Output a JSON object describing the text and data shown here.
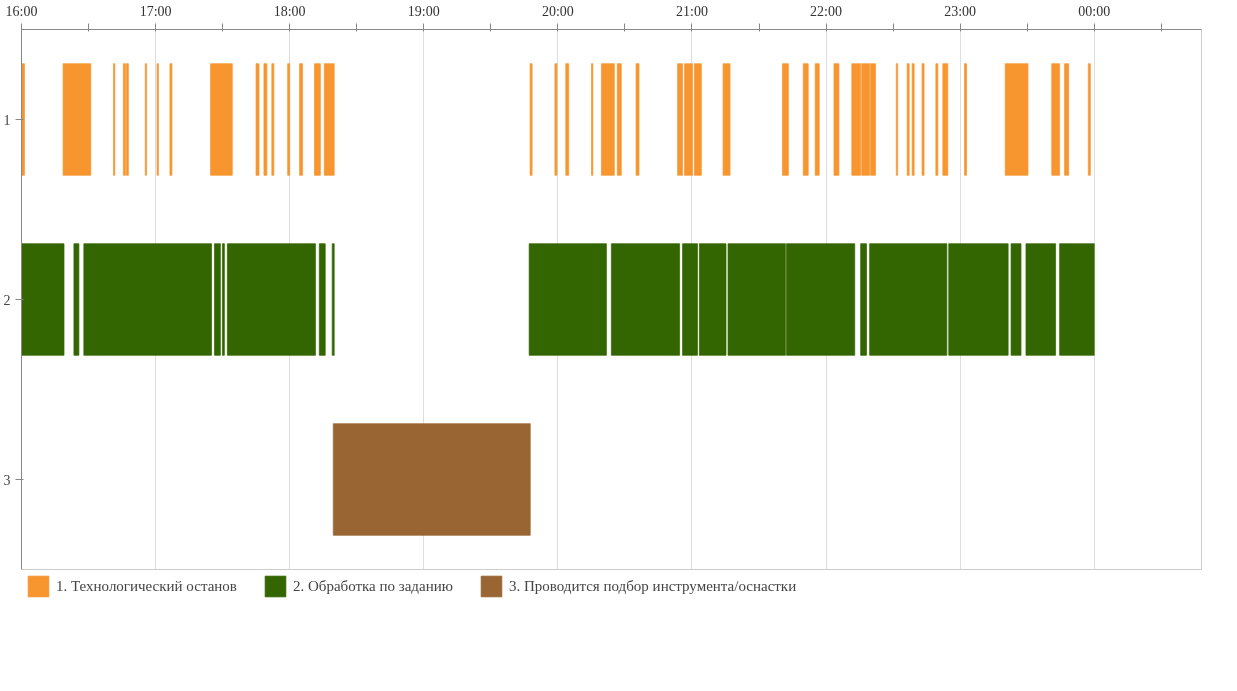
{
  "chart_data": {
    "type": "bar",
    "orientation": "horizontal",
    "categories": [
      "1",
      "2",
      "3"
    ],
    "xlim": [
      16,
      24.8
    ],
    "xticks": [
      {
        "value": 16,
        "label": "16:00"
      },
      {
        "value": 16.5,
        "label": null
      },
      {
        "value": 17,
        "label": "17:00"
      },
      {
        "value": 17.5,
        "label": null
      },
      {
        "value": 18,
        "label": "18:00"
      },
      {
        "value": 18.5,
        "label": null
      },
      {
        "value": 19,
        "label": "19:00"
      },
      {
        "value": 19.5,
        "label": null
      },
      {
        "value": 20,
        "label": "20:00"
      },
      {
        "value": 20.5,
        "label": null
      },
      {
        "value": 21,
        "label": "21:00"
      },
      {
        "value": 21.5,
        "label": null
      },
      {
        "value": 22,
        "label": "22:00"
      },
      {
        "value": 22.5,
        "label": null
      },
      {
        "value": 23,
        "label": "23:00"
      },
      {
        "value": 23.5,
        "label": null
      },
      {
        "value": 24,
        "label": "00:00"
      },
      {
        "value": 24.5,
        "label": null
      }
    ],
    "grid": "x",
    "legend": "bottom",
    "series": [
      {
        "name": "1. Технологический останов",
        "color": "#f7962f",
        "base": [
          16.0,
          null,
          null
        ],
        "values": [
          0.022,
          null,
          null
        ]
      },
      {
        "color": "#f7962f",
        "base": [
          16.31,
          null,
          null
        ],
        "values": [
          0.207,
          null,
          null
        ]
      },
      {
        "color": "#f7962f",
        "base": [
          16.686,
          null,
          null
        ],
        "values": [
          0.01,
          null,
          null
        ]
      },
      {
        "color": "#f7962f",
        "base": [
          16.76,
          null,
          null
        ],
        "values": [
          0.015,
          null,
          null
        ]
      },
      {
        "color": "#f7962f",
        "base": [
          16.782,
          null,
          null
        ],
        "values": [
          0.015,
          null,
          null
        ]
      },
      {
        "color": "#f7962f",
        "base": [
          16.923,
          null,
          null
        ],
        "values": [
          0.01,
          null,
          null
        ]
      },
      {
        "color": "#f7962f",
        "base": [
          17.011,
          null,
          null
        ],
        "values": [
          0.01,
          null,
          null
        ]
      },
      {
        "color": "#f7962f",
        "base": [
          17.107,
          null,
          null
        ],
        "values": [
          0.015,
          null,
          null
        ]
      },
      {
        "color": "#f7962f",
        "base": [
          17.41,
          null,
          null
        ],
        "values": [
          0.162,
          null,
          null
        ]
      },
      {
        "color": "#f7962f",
        "base": [
          17.749,
          null,
          null
        ],
        "values": [
          0.022,
          null,
          null
        ]
      },
      {
        "color": "#f7962f",
        "base": [
          17.808,
          null,
          null
        ],
        "values": [
          0.022,
          null,
          null
        ]
      },
      {
        "color": "#f7962f",
        "base": [
          17.867,
          null,
          null
        ],
        "values": [
          0.015,
          null,
          null
        ]
      },
      {
        "color": "#f7962f",
        "base": [
          17.985,
          null,
          null
        ],
        "values": [
          0.015,
          null,
          null
        ]
      },
      {
        "color": "#f7962f",
        "base": [
          18.074,
          null,
          null
        ],
        "values": [
          0.022,
          null,
          null
        ]
      },
      {
        "color": "#f7962f",
        "base": [
          18.185,
          null,
          null
        ],
        "values": [
          0.044,
          null,
          null
        ]
      },
      {
        "color": "#f7962f",
        "base": [
          18.258,
          null,
          null
        ],
        "values": [
          0.074,
          null,
          null
        ]
      },
      {
        "color": "#f7962f",
        "base": [
          19.793,
          null,
          null
        ],
        "values": [
          0.015,
          null,
          null
        ]
      },
      {
        "color": "#f7962f",
        "base": [
          19.978,
          null,
          null
        ],
        "values": [
          0.015,
          null,
          null
        ]
      },
      {
        "color": "#f7962f",
        "base": [
          20.059,
          null,
          null
        ],
        "values": [
          0.022,
          null,
          null
        ]
      },
      {
        "color": "#f7962f",
        "base": [
          20.251,
          null,
          null
        ],
        "values": [
          0.01,
          null,
          null
        ]
      },
      {
        "color": "#f7962f",
        "base": [
          20.325,
          null,
          null
        ],
        "values": [
          0.096,
          null,
          null
        ]
      },
      {
        "color": "#f7962f",
        "base": [
          20.443,
          null,
          null
        ],
        "values": [
          0.03,
          null,
          null
        ]
      },
      {
        "color": "#f7962f",
        "base": [
          20.583,
          null,
          null
        ],
        "values": [
          0.022,
          null,
          null
        ]
      },
      {
        "color": "#f7962f",
        "base": [
          20.893,
          null,
          null
        ],
        "values": [
          0.037,
          null,
          null
        ]
      },
      {
        "color": "#f7962f",
        "base": [
          20.945,
          null,
          null
        ],
        "values": [
          0.059,
          null,
          null
        ]
      },
      {
        "color": "#f7962f",
        "base": [
          21.018,
          null,
          null
        ],
        "values": [
          0.052,
          null,
          null
        ]
      },
      {
        "color": "#f7962f",
        "base": [
          21.232,
          null,
          null
        ],
        "values": [
          0.052,
          null,
          null
        ]
      },
      {
        "color": "#f7962f",
        "base": [
          21.675,
          null,
          null
        ],
        "values": [
          0.044,
          null,
          null
        ]
      },
      {
        "color": "#f7962f",
        "base": [
          21.83,
          null,
          null
        ],
        "values": [
          0.037,
          null,
          null
        ]
      },
      {
        "color": "#f7962f",
        "base": [
          21.919,
          null,
          null
        ],
        "values": [
          0.03,
          null,
          null
        ]
      },
      {
        "color": "#f7962f",
        "base": [
          22.059,
          null,
          null
        ],
        "values": [
          0.037,
          null,
          null
        ]
      },
      {
        "color": "#f7962f",
        "base": [
          22.192,
          null,
          null
        ],
        "values": [
          0.066,
          null,
          null
        ]
      },
      {
        "color": "#f7962f",
        "base": [
          22.266,
          null,
          null
        ],
        "values": [
          0.059,
          null,
          null
        ]
      },
      {
        "color": "#f7962f",
        "base": [
          22.332,
          null,
          null
        ],
        "values": [
          0.037,
          null,
          null
        ]
      },
      {
        "color": "#f7962f",
        "base": [
          22.524,
          null,
          null
        ],
        "values": [
          0.01,
          null,
          null
        ]
      },
      {
        "color": "#f7962f",
        "base": [
          22.605,
          null,
          null
        ],
        "values": [
          0.015,
          null,
          null
        ]
      },
      {
        "color": "#f7962f",
        "base": [
          22.642,
          null,
          null
        ],
        "values": [
          0.015,
          null,
          null
        ]
      },
      {
        "color": "#f7962f",
        "base": [
          22.716,
          null,
          null
        ],
        "values": [
          0.015,
          null,
          null
        ]
      },
      {
        "color": "#f7962f",
        "base": [
          22.819,
          null,
          null
        ],
        "values": [
          0.015,
          null,
          null
        ]
      },
      {
        "color": "#f7962f",
        "base": [
          22.871,
          null,
          null
        ],
        "values": [
          0.037,
          null,
          null
        ]
      },
      {
        "color": "#f7962f",
        "base": [
          23.033,
          null,
          null
        ],
        "values": [
          0.015,
          null,
          null
        ]
      },
      {
        "color": "#f7962f",
        "base": [
          23.336,
          null,
          null
        ],
        "values": [
          0.17,
          null,
          null
        ]
      },
      {
        "color": "#f7962f",
        "base": [
          23.683,
          null,
          null
        ],
        "values": [
          0.059,
          null,
          null
        ]
      },
      {
        "color": "#f7962f",
        "base": [
          23.779,
          null,
          null
        ],
        "values": [
          0.03,
          null,
          null
        ]
      },
      {
        "color": "#f7962f",
        "base": [
          23.956,
          null,
          null
        ],
        "values": [
          0.015,
          null,
          null
        ]
      },
      {
        "name": "2. Обработка по заданию",
        "color": "#336600",
        "base": [
          null,
          16.0,
          null
        ],
        "values": [
          null,
          0.317,
          null
        ]
      },
      {
        "color": "#336600",
        "base": [
          null,
          16.391,
          null
        ],
        "values": [
          null,
          0.037,
          null
        ]
      },
      {
        "color": "#336600",
        "base": [
          null,
          16.465,
          null
        ],
        "values": [
          null,
          0.952,
          null
        ]
      },
      {
        "color": "#336600",
        "base": [
          null,
          17.439,
          null
        ],
        "values": [
          null,
          0.044,
          null
        ]
      },
      {
        "color": "#336600",
        "base": [
          null,
          17.498,
          null
        ],
        "values": [
          null,
          0.015,
          null
        ]
      },
      {
        "color": "#336600",
        "base": [
          null,
          17.535,
          null
        ],
        "values": [
          null,
          0.657,
          null
        ]
      },
      {
        "color": "#336600",
        "base": [
          null,
          18.221,
          null
        ],
        "values": [
          null,
          0.044,
          null
        ]
      },
      {
        "color": "#336600",
        "base": [
          null,
          18.317,
          null
        ],
        "values": [
          null,
          0.015,
          null
        ]
      },
      {
        "color": "#336600",
        "base": [
          null,
          19.786,
          null
        ],
        "values": [
          null,
          0.576,
          null
        ]
      },
      {
        "color": "#336600",
        "base": [
          null,
          20.399,
          null
        ],
        "values": [
          null,
          0.509,
          null
        ]
      },
      {
        "color": "#336600",
        "base": [
          null,
          20.93,
          null
        ],
        "values": [
          null,
          0.111,
          null
        ]
      },
      {
        "color": "#336600",
        "base": [
          null,
          21.055,
          null
        ],
        "values": [
          null,
          0.199,
          null
        ]
      },
      {
        "color": "#336600",
        "base": [
          null,
          21.269,
          null
        ],
        "values": [
          null,
          0.428,
          null
        ]
      },
      {
        "color": "#336600",
        "base": [
          null,
          21.705,
          null
        ],
        "values": [
          null,
          0.509,
          null
        ]
      },
      {
        "color": "#336600",
        "base": [
          null,
          22.258,
          null
        ],
        "values": [
          null,
          0.044,
          null
        ]
      },
      {
        "color": "#336600",
        "base": [
          null,
          22.325,
          null
        ],
        "values": [
          null,
          0.576,
          null
        ]
      },
      {
        "color": "#336600",
        "base": [
          null,
          22.915,
          null
        ],
        "values": [
          null,
          0.443,
          null
        ]
      },
      {
        "color": "#336600",
        "base": [
          null,
          23.38,
          null
        ],
        "values": [
          null,
          0.074,
          null
        ]
      },
      {
        "color": "#336600",
        "base": [
          null,
          23.491,
          null
        ],
        "values": [
          null,
          0.221,
          null
        ]
      },
      {
        "color": "#336600",
        "base": [
          null,
          23.742,
          null
        ],
        "values": [
          null,
          0.258,
          null
        ]
      },
      {
        "name": "3. Проводится подбор инструмента/оснастки",
        "color": "#996633",
        "base": [
          null,
          null,
          18.325
        ],
        "values": [
          null,
          null,
          1.469
        ]
      }
    ]
  }
}
